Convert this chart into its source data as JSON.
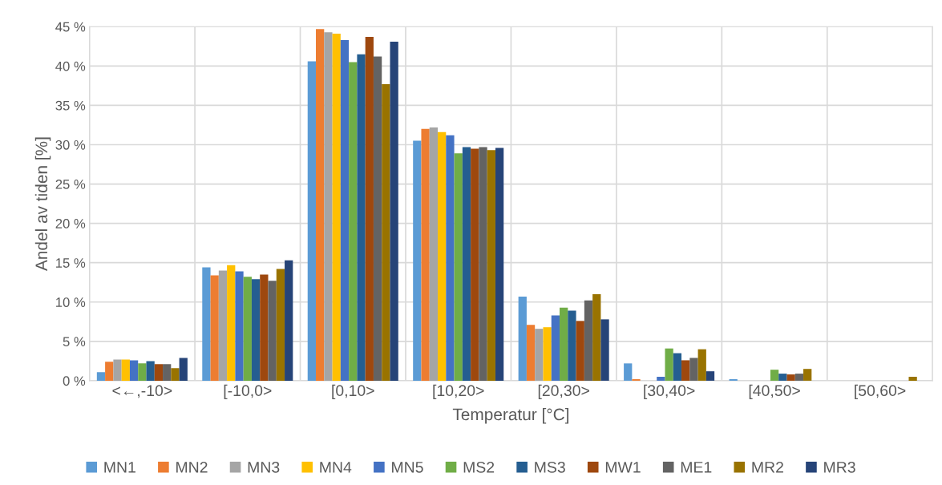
{
  "chart_data": {
    "type": "bar",
    "xlabel": "Temperatur [°C]",
    "ylabel": "Andel av tiden [%]",
    "categories": [
      "<←,-10>",
      "[-10,0>",
      "[0,10>",
      "[10,20>",
      "[20,30>",
      "[30,40>",
      "[40,50>",
      "[50,60>"
    ],
    "series": [
      {
        "name": "MN1",
        "color": "#5b9bd5",
        "values": [
          1.1,
          14.4,
          40.6,
          30.5,
          10.7,
          2.2,
          0.2,
          0
        ]
      },
      {
        "name": "MN2",
        "color": "#ed7d31",
        "values": [
          2.4,
          13.4,
          44.7,
          32.0,
          7.1,
          0.2,
          0,
          0
        ]
      },
      {
        "name": "MN3",
        "color": "#a5a5a5",
        "values": [
          2.7,
          14.0,
          44.3,
          32.2,
          6.6,
          0,
          0,
          0
        ]
      },
      {
        "name": "MN4",
        "color": "#ffc000",
        "values": [
          2.7,
          14.7,
          44.1,
          31.6,
          6.8,
          0,
          0,
          0
        ]
      },
      {
        "name": "MN5",
        "color": "#4472c4",
        "values": [
          2.6,
          13.9,
          43.3,
          31.2,
          8.3,
          0.5,
          0,
          0
        ]
      },
      {
        "name": "MS2",
        "color": "#70ad47",
        "values": [
          2.2,
          13.2,
          40.5,
          28.9,
          9.3,
          4.1,
          1.4,
          0
        ]
      },
      {
        "name": "MS3",
        "color": "#255e91",
        "values": [
          2.5,
          12.9,
          41.5,
          29.7,
          8.9,
          3.5,
          0.9,
          0
        ]
      },
      {
        "name": "MW1",
        "color": "#9e480e",
        "values": [
          2.1,
          13.5,
          43.7,
          29.5,
          7.6,
          2.6,
          0.8,
          0
        ]
      },
      {
        "name": "ME1",
        "color": "#636363",
        "values": [
          2.1,
          12.7,
          41.2,
          29.7,
          10.2,
          2.9,
          0.9,
          0
        ]
      },
      {
        "name": "MR2",
        "color": "#997300",
        "values": [
          1.6,
          14.2,
          37.7,
          29.3,
          11.0,
          4.0,
          1.5,
          0.5
        ]
      },
      {
        "name": "MR3",
        "color": "#264478",
        "values": [
          2.9,
          15.3,
          43.1,
          29.6,
          7.8,
          1.2,
          0,
          0
        ]
      }
    ],
    "ylim": [
      0,
      45
    ],
    "yticks": [
      {
        "value": 0,
        "label": "0 %"
      },
      {
        "value": 5,
        "label": "5 %"
      },
      {
        "value": 10,
        "label": "10 %"
      },
      {
        "value": 15,
        "label": "15 %"
      },
      {
        "value": 20,
        "label": "20 %"
      },
      {
        "value": 25,
        "label": "25 %"
      },
      {
        "value": 30,
        "label": "30 %"
      },
      {
        "value": 35,
        "label": "35 %"
      },
      {
        "value": 40,
        "label": "40 %"
      },
      {
        "value": 45,
        "label": "45 %"
      }
    ],
    "grid": true,
    "legend": "bottom"
  }
}
